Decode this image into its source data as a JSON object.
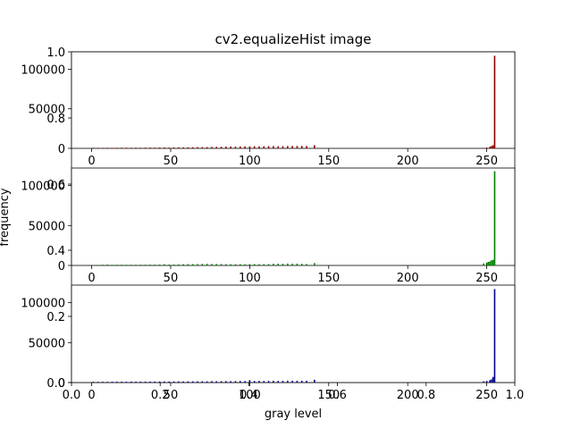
{
  "chart_data": {
    "type": "bar",
    "title": "cv2.equalizeHist image",
    "xlabel": "gray level",
    "ylabel": "frequency",
    "overlay_axis": {
      "xticks": [
        "0.0",
        "0.2",
        "0.4",
        "0.6",
        "0.8",
        "1.0"
      ],
      "yticks": [
        "0.0",
        "0.2",
        "0.4",
        "0.6",
        "0.8",
        "1.0"
      ]
    },
    "xlim": [
      -12.75,
      267.75
    ],
    "xticks": [
      0,
      50,
      100,
      150,
      200,
      250
    ],
    "panels": [
      {
        "name": "red",
        "color": "#8b0000",
        "ylim": [
          0,
          122000
        ],
        "yticks": [
          0,
          50000,
          100000
        ],
        "bars": [
          {
            "x": 1,
            "y": 800
          },
          {
            "x": 4,
            "y": 700
          },
          {
            "x": 7,
            "y": 700
          },
          {
            "x": 10,
            "y": 800
          },
          {
            "x": 13,
            "y": 700
          },
          {
            "x": 16,
            "y": 800
          },
          {
            "x": 19,
            "y": 900
          },
          {
            "x": 22,
            "y": 900
          },
          {
            "x": 25,
            "y": 800
          },
          {
            "x": 28,
            "y": 900
          },
          {
            "x": 31,
            "y": 800
          },
          {
            "x": 34,
            "y": 1000
          },
          {
            "x": 37,
            "y": 1000
          },
          {
            "x": 40,
            "y": 1000
          },
          {
            "x": 43,
            "y": 1100
          },
          {
            "x": 46,
            "y": 1200
          },
          {
            "x": 49,
            "y": 1000
          },
          {
            "x": 52,
            "y": 1300
          },
          {
            "x": 55,
            "y": 1300
          },
          {
            "x": 58,
            "y": 1400
          },
          {
            "x": 61,
            "y": 1400
          },
          {
            "x": 64,
            "y": 1500
          },
          {
            "x": 67,
            "y": 1600
          },
          {
            "x": 70,
            "y": 1600
          },
          {
            "x": 73,
            "y": 1600
          },
          {
            "x": 76,
            "y": 1800
          },
          {
            "x": 79,
            "y": 1900
          },
          {
            "x": 82,
            "y": 2000
          },
          {
            "x": 85,
            "y": 2200
          },
          {
            "x": 88,
            "y": 2400
          },
          {
            "x": 91,
            "y": 2300
          },
          {
            "x": 94,
            "y": 2400
          },
          {
            "x": 97,
            "y": 2500
          },
          {
            "x": 100,
            "y": 2600
          },
          {
            "x": 103,
            "y": 2700
          },
          {
            "x": 106,
            "y": 2600
          },
          {
            "x": 109,
            "y": 2700
          },
          {
            "x": 112,
            "y": 2800
          },
          {
            "x": 115,
            "y": 2900
          },
          {
            "x": 118,
            "y": 2700
          },
          {
            "x": 121,
            "y": 2800
          },
          {
            "x": 124,
            "y": 2900
          },
          {
            "x": 127,
            "y": 3000
          },
          {
            "x": 130,
            "y": 3000
          },
          {
            "x": 133,
            "y": 3100
          },
          {
            "x": 136,
            "y": 3000
          },
          {
            "x": 141,
            "y": 4000
          },
          {
            "x": 248,
            "y": 500
          },
          {
            "x": 250,
            "y": 1000
          },
          {
            "x": 252,
            "y": 2000
          },
          {
            "x": 253,
            "y": 3000
          },
          {
            "x": 254,
            "y": 4000
          },
          {
            "x": 255,
            "y": 117000
          }
        ]
      },
      {
        "name": "green",
        "color": "#008000",
        "ylim": [
          0,
          122000
        ],
        "yticks": [
          0,
          50000,
          100000
        ],
        "bars": [
          {
            "x": 1,
            "y": 600
          },
          {
            "x": 4,
            "y": 700
          },
          {
            "x": 7,
            "y": 900
          },
          {
            "x": 10,
            "y": 1100
          },
          {
            "x": 13,
            "y": 800
          },
          {
            "x": 16,
            "y": 900
          },
          {
            "x": 19,
            "y": 900
          },
          {
            "x": 22,
            "y": 800
          },
          {
            "x": 25,
            "y": 900
          },
          {
            "x": 28,
            "y": 900
          },
          {
            "x": 31,
            "y": 900
          },
          {
            "x": 34,
            "y": 1000
          },
          {
            "x": 37,
            "y": 1000
          },
          {
            "x": 40,
            "y": 1000
          },
          {
            "x": 43,
            "y": 1100
          },
          {
            "x": 46,
            "y": 1500
          },
          {
            "x": 49,
            "y": 1100
          },
          {
            "x": 52,
            "y": 1200
          },
          {
            "x": 55,
            "y": 1300
          },
          {
            "x": 58,
            "y": 1600
          },
          {
            "x": 61,
            "y": 1700
          },
          {
            "x": 64,
            "y": 1700
          },
          {
            "x": 67,
            "y": 1700
          },
          {
            "x": 70,
            "y": 1900
          },
          {
            "x": 73,
            "y": 2000
          },
          {
            "x": 76,
            "y": 1800
          },
          {
            "x": 79,
            "y": 1800
          },
          {
            "x": 82,
            "y": 1700
          },
          {
            "x": 85,
            "y": 1600
          },
          {
            "x": 88,
            "y": 1600
          },
          {
            "x": 91,
            "y": 1500
          },
          {
            "x": 94,
            "y": 1600
          },
          {
            "x": 97,
            "y": 1500
          },
          {
            "x": 100,
            "y": 1600
          },
          {
            "x": 103,
            "y": 1700
          },
          {
            "x": 106,
            "y": 1600
          },
          {
            "x": 109,
            "y": 1600
          },
          {
            "x": 112,
            "y": 1700
          },
          {
            "x": 115,
            "y": 2100
          },
          {
            "x": 118,
            "y": 2200
          },
          {
            "x": 121,
            "y": 2100
          },
          {
            "x": 124,
            "y": 2300
          },
          {
            "x": 127,
            "y": 2100
          },
          {
            "x": 130,
            "y": 2300
          },
          {
            "x": 133,
            "y": 2000
          },
          {
            "x": 136,
            "y": 1800
          },
          {
            "x": 141,
            "y": 3000
          },
          {
            "x": 248,
            "y": 2500
          },
          {
            "x": 250,
            "y": 3500
          },
          {
            "x": 251,
            "y": 4500
          },
          {
            "x": 252,
            "y": 5000
          },
          {
            "x": 253,
            "y": 6500
          },
          {
            "x": 254,
            "y": 7000
          },
          {
            "x": 255,
            "y": 118000
          }
        ]
      },
      {
        "name": "blue",
        "color": "#00008b",
        "ylim": [
          0,
          122000
        ],
        "yticks": [
          0,
          50000,
          100000
        ],
        "bars": [
          {
            "x": 1,
            "y": 1000
          },
          {
            "x": 4,
            "y": 900
          },
          {
            "x": 7,
            "y": 1000
          },
          {
            "x": 10,
            "y": 900
          },
          {
            "x": 13,
            "y": 1000
          },
          {
            "x": 16,
            "y": 1100
          },
          {
            "x": 19,
            "y": 1100
          },
          {
            "x": 22,
            "y": 1000
          },
          {
            "x": 25,
            "y": 1200
          },
          {
            "x": 28,
            "y": 1100
          },
          {
            "x": 31,
            "y": 1200
          },
          {
            "x": 34,
            "y": 1200
          },
          {
            "x": 37,
            "y": 1200
          },
          {
            "x": 40,
            "y": 1300
          },
          {
            "x": 43,
            "y": 1300
          },
          {
            "x": 46,
            "y": 1400
          },
          {
            "x": 49,
            "y": 1300
          },
          {
            "x": 52,
            "y": 1400
          },
          {
            "x": 55,
            "y": 1500
          },
          {
            "x": 58,
            "y": 1400
          },
          {
            "x": 61,
            "y": 1500
          },
          {
            "x": 64,
            "y": 1500
          },
          {
            "x": 67,
            "y": 1600
          },
          {
            "x": 70,
            "y": 1600
          },
          {
            "x": 73,
            "y": 1500
          },
          {
            "x": 76,
            "y": 1700
          },
          {
            "x": 79,
            "y": 1600
          },
          {
            "x": 82,
            "y": 1700
          },
          {
            "x": 85,
            "y": 1800
          },
          {
            "x": 88,
            "y": 1700
          },
          {
            "x": 91,
            "y": 1800
          },
          {
            "x": 94,
            "y": 1900
          },
          {
            "x": 97,
            "y": 1800
          },
          {
            "x": 100,
            "y": 3000
          },
          {
            "x": 103,
            "y": 1900
          },
          {
            "x": 106,
            "y": 2000
          },
          {
            "x": 109,
            "y": 1900
          },
          {
            "x": 112,
            "y": 2000
          },
          {
            "x": 115,
            "y": 2100
          },
          {
            "x": 118,
            "y": 2000
          },
          {
            "x": 121,
            "y": 2100
          },
          {
            "x": 124,
            "y": 2200
          },
          {
            "x": 127,
            "y": 2100
          },
          {
            "x": 130,
            "y": 2200
          },
          {
            "x": 133,
            "y": 2300
          },
          {
            "x": 136,
            "y": 2200
          },
          {
            "x": 141,
            "y": 3500
          },
          {
            "x": 248,
            "y": 1500
          },
          {
            "x": 250,
            "y": 2000
          },
          {
            "x": 252,
            "y": 3000
          },
          {
            "x": 253,
            "y": 4000
          },
          {
            "x": 254,
            "y": 7000
          },
          {
            "x": 255,
            "y": 117000
          }
        ]
      }
    ]
  }
}
